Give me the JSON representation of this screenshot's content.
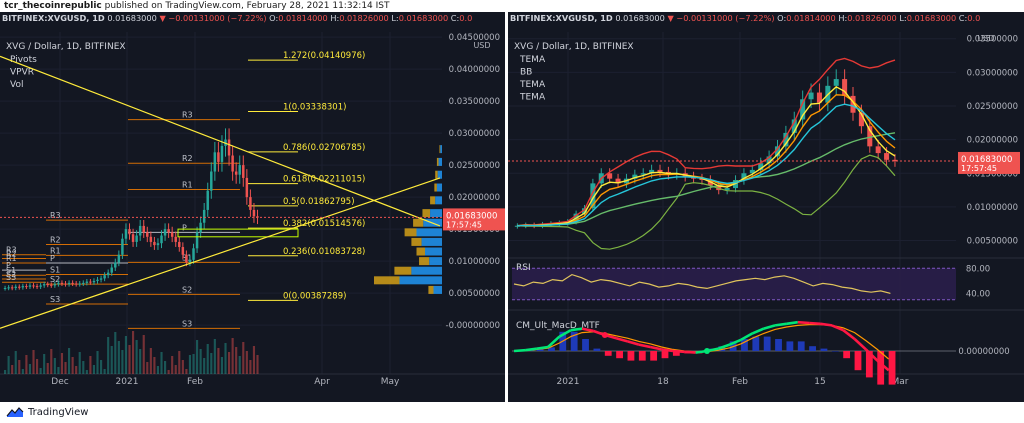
{
  "header": {
    "user": "tcr_thecoinrepublic",
    "text": " published on TradingView.com, February 28, 2021 11:32:14 IST"
  },
  "footer": {
    "brand": "TradingView"
  },
  "left": {
    "symbol_bar": {
      "symbol": "BITFINEX:XVGUSD, 1D",
      "last": "0.01683000",
      "change": "▼ −0.00131000 (−7.22%)",
      "O": "0.01814000",
      "H": "0.01826000",
      "L": "0.01683000",
      "C": "0.0"
    },
    "title": "XVG / Dollar, 1D, BITFINEX",
    "indicators": [
      "Pivots",
      "VPVR",
      "Vol"
    ],
    "price_axis": {
      "currency": "USD",
      "min": -0.0042,
      "max": 0.0458,
      "ticks": [
        "0.04500000",
        "0.04000000",
        "0.03500000",
        "0.03000000",
        "0.02500000",
        "0.02000000",
        "0.01500000",
        "0.01000000",
        "0.00500000",
        "-0.00000000"
      ],
      "tick_values": [
        0.045,
        0.04,
        0.035,
        0.03,
        0.025,
        0.02,
        0.015,
        0.01,
        0.005,
        0.0
      ]
    },
    "time_axis": [
      "Dec",
      "2021",
      "Feb",
      "Apr",
      "May"
    ],
    "last_price": {
      "value": 0.01683,
      "label": "0.01683000",
      "countdown": "17:57:45"
    },
    "fib_levels": [
      {
        "ratio": 1.272,
        "value": 0.04140976,
        "label": "1.272(0.04140976)"
      },
      {
        "ratio": 1,
        "value": 0.03338301,
        "label": "1(0.03338301)"
      },
      {
        "ratio": 0.786,
        "value": 0.02706785,
        "label": "0.786(0.02706785)"
      },
      {
        "ratio": 0.618,
        "value": 0.02211015,
        "label": "0.618(0.02211015)"
      },
      {
        "ratio": 0.5,
        "value": 0.01862795,
        "label": "0.5(0.01862795)"
      },
      {
        "ratio": 0.382,
        "value": 0.01514576,
        "label": "0.382(0.01514576)"
      },
      {
        "ratio": 0.236,
        "value": 0.01083728,
        "label": "0.236(0.01083728)"
      },
      {
        "ratio": 0,
        "value": 0.00387289,
        "label": "0(0.00387289)"
      }
    ],
    "pivot_sets": [
      {
        "levels": [
          {
            "n": "R3",
            "v": 0.011
          },
          {
            "n": "R2",
            "v": 0.0104
          },
          {
            "n": "R1",
            "v": 0.0097
          },
          {
            "n": "P",
            "v": 0.0086
          },
          {
            "n": "S1",
            "v": 0.0078
          },
          {
            "n": "S2",
            "v": 0.0072
          },
          {
            "n": "S3",
            "v": 0.0067
          }
        ]
      },
      {
        "levels": [
          {
            "n": "R3",
            "v": 0.0164
          },
          {
            "n": "R2",
            "v": 0.0126
          },
          {
            "n": "R1",
            "v": 0.0109
          },
          {
            "n": "P",
            "v": 0.0097
          },
          {
            "n": "S1",
            "v": 0.0079
          },
          {
            "n": "S2",
            "v": 0.0064
          },
          {
            "n": "S3",
            "v": 0.0033
          }
        ]
      },
      {
        "levels": [
          {
            "n": "R3",
            "v": 0.0321
          },
          {
            "n": "R2",
            "v": 0.0253
          },
          {
            "n": "R1",
            "v": 0.0212
          },
          {
            "n": "P",
            "v": 0.0145
          },
          {
            "n": "S1",
            "v": 0.0098
          },
          {
            "n": "S2",
            "v": 0.0048
          },
          {
            "n": "S3",
            "v": -0.0005
          }
        ]
      }
    ],
    "closes": [
      0.0058,
      0.0059,
      0.0058,
      0.006,
      0.0059,
      0.0061,
      0.006,
      0.0062,
      0.0061,
      0.006,
      0.0062,
      0.0064,
      0.0063,
      0.0062,
      0.0064,
      0.0066,
      0.0065,
      0.0064,
      0.0066,
      0.0065,
      0.0064,
      0.0065,
      0.0066,
      0.0068,
      0.0067,
      0.0069,
      0.0071,
      0.0073,
      0.0078,
      0.0082,
      0.009,
      0.0098,
      0.011,
      0.0135,
      0.015,
      0.0142,
      0.013,
      0.014,
      0.0155,
      0.0145,
      0.0138,
      0.013,
      0.0125,
      0.0128,
      0.014,
      0.015,
      0.0145,
      0.0138,
      0.013,
      0.0122,
      0.011,
      0.0098,
      0.0102,
      0.012,
      0.0145,
      0.016,
      0.018,
      0.021,
      0.024,
      0.027,
      0.0255,
      0.028,
      0.029,
      0.0265,
      0.024,
      0.0235,
      0.025,
      0.023,
      0.02,
      0.018,
      0.017,
      0.0168
    ],
    "volume_profile": [
      {
        "p": 0.0275,
        "a": 2,
        "b": 1
      },
      {
        "p": 0.0255,
        "a": 4,
        "b": 2
      },
      {
        "p": 0.0235,
        "a": 5,
        "b": 3
      },
      {
        "p": 0.0215,
        "a": 6,
        "b": 3
      },
      {
        "p": 0.0195,
        "a": 8,
        "b": 6
      },
      {
        "p": 0.0175,
        "a": 14,
        "b": 9
      },
      {
        "p": 0.016,
        "a": 22,
        "b": 12
      },
      {
        "p": 0.0145,
        "a": 30,
        "b": 14
      },
      {
        "p": 0.013,
        "a": 24,
        "b": 12
      },
      {
        "p": 0.0115,
        "a": 20,
        "b": 10
      },
      {
        "p": 0.01,
        "a": 15,
        "b": 12
      },
      {
        "p": 0.0085,
        "a": 36,
        "b": 20
      },
      {
        "p": 0.007,
        "a": 50,
        "b": 30
      },
      {
        "p": 0.0055,
        "a": 10,
        "b": 6
      }
    ],
    "trendlines": [
      {
        "x1": 0,
        "y1": 0.042,
        "x2": 440,
        "y2": 0.0155
      },
      {
        "x1": 0,
        "y1": -0.0005,
        "x2": 440,
        "y2": 0.023
      }
    ],
    "box": {
      "x1": 178,
      "x2": 298,
      "p1": 0.0138,
      "p2": 0.015
    }
  },
  "right": {
    "title": "XVG / Dollar, 1D, BITFINEX",
    "indicators": [
      "TEMA",
      "BB",
      "TEMA",
      "TEMA"
    ],
    "price_axis": {
      "currency": "USD",
      "min": 0.003,
      "max": 0.036,
      "ticks": [
        "0.03500000",
        "0.03000000",
        "0.02500000",
        "0.02000000",
        "0.01500000",
        "0.01000000",
        "0.00500000"
      ],
      "tick_values": [
        0.035,
        0.03,
        0.025,
        0.02,
        0.015,
        0.01,
        0.005
      ]
    },
    "last_price": {
      "value": 0.01683,
      "label": "0.01683000",
      "countdown": "17:57:45"
    },
    "time_axis": [
      "2021",
      "18",
      "Feb",
      "15",
      "Mar"
    ],
    "closes": [
      0.0072,
      0.0073,
      0.0072,
      0.0074,
      0.0075,
      0.0076,
      0.0078,
      0.009,
      0.0098,
      0.0135,
      0.015,
      0.0142,
      0.0135,
      0.0142,
      0.0148,
      0.015,
      0.0155,
      0.0152,
      0.0148,
      0.015,
      0.0145,
      0.0142,
      0.014,
      0.0132,
      0.0125,
      0.0128,
      0.014,
      0.015,
      0.0155,
      0.0165,
      0.0175,
      0.019,
      0.021,
      0.023,
      0.026,
      0.027,
      0.0255,
      0.028,
      0.029,
      0.0265,
      0.024,
      0.022,
      0.019,
      0.018,
      0.017,
      0.0168
    ],
    "rsi": {
      "label": "RSI",
      "ticks": [
        "80.00",
        "40.00"
      ],
      "tick_values": [
        80,
        40
      ],
      "values": [
        55,
        52,
        58,
        56,
        62,
        60,
        70,
        65,
        58,
        62,
        60,
        56,
        52,
        58,
        55,
        50,
        52,
        56,
        54,
        50,
        48,
        52,
        56,
        60,
        62,
        64,
        62,
        66,
        68,
        64,
        58,
        52,
        56,
        54,
        50,
        48,
        44,
        42,
        44,
        40
      ]
    },
    "macd": {
      "label": "CM_Ult_MacD_MTF",
      "tick": "0.00000000",
      "macd": [
        0,
        0.1,
        0.3,
        0.5,
        1.8,
        2.6,
        2.8,
        2.5,
        2.0,
        1.6,
        1.2,
        0.8,
        0.5,
        0.2,
        0,
        -0.1,
        -0.2,
        0,
        0.3,
        0.8,
        1.4,
        2.2,
        2.8,
        3.2,
        3.4,
        3.6,
        3.5,
        3.4,
        3.2,
        2.6,
        1.5,
        0.2,
        -1.2,
        -2.4
      ],
      "signal": [
        0,
        0.05,
        0.2,
        0.35,
        1.0,
        1.8,
        2.3,
        2.4,
        2.2,
        1.9,
        1.6,
        1.2,
        0.9,
        0.5,
        0.2,
        0,
        -0.1,
        -0.1,
        0.1,
        0.4,
        0.9,
        1.6,
        2.2,
        2.7,
        3.0,
        3.2,
        3.3,
        3.3,
        3.2,
        2.9,
        2.3,
        1.3,
        0.2,
        -1.0
      ],
      "hist": [
        0,
        0.05,
        0.1,
        0.15,
        0.8,
        0.8,
        0.5,
        0.1,
        -0.2,
        -0.3,
        -0.4,
        -0.4,
        -0.4,
        -0.3,
        -0.2,
        -0.1,
        -0.1,
        0.1,
        0.2,
        0.4,
        0.5,
        0.6,
        0.6,
        0.5,
        0.4,
        0.4,
        0.2,
        0.1,
        0,
        -0.3,
        -0.8,
        -1.1,
        -1.4,
        -1.4
      ]
    }
  }
}
